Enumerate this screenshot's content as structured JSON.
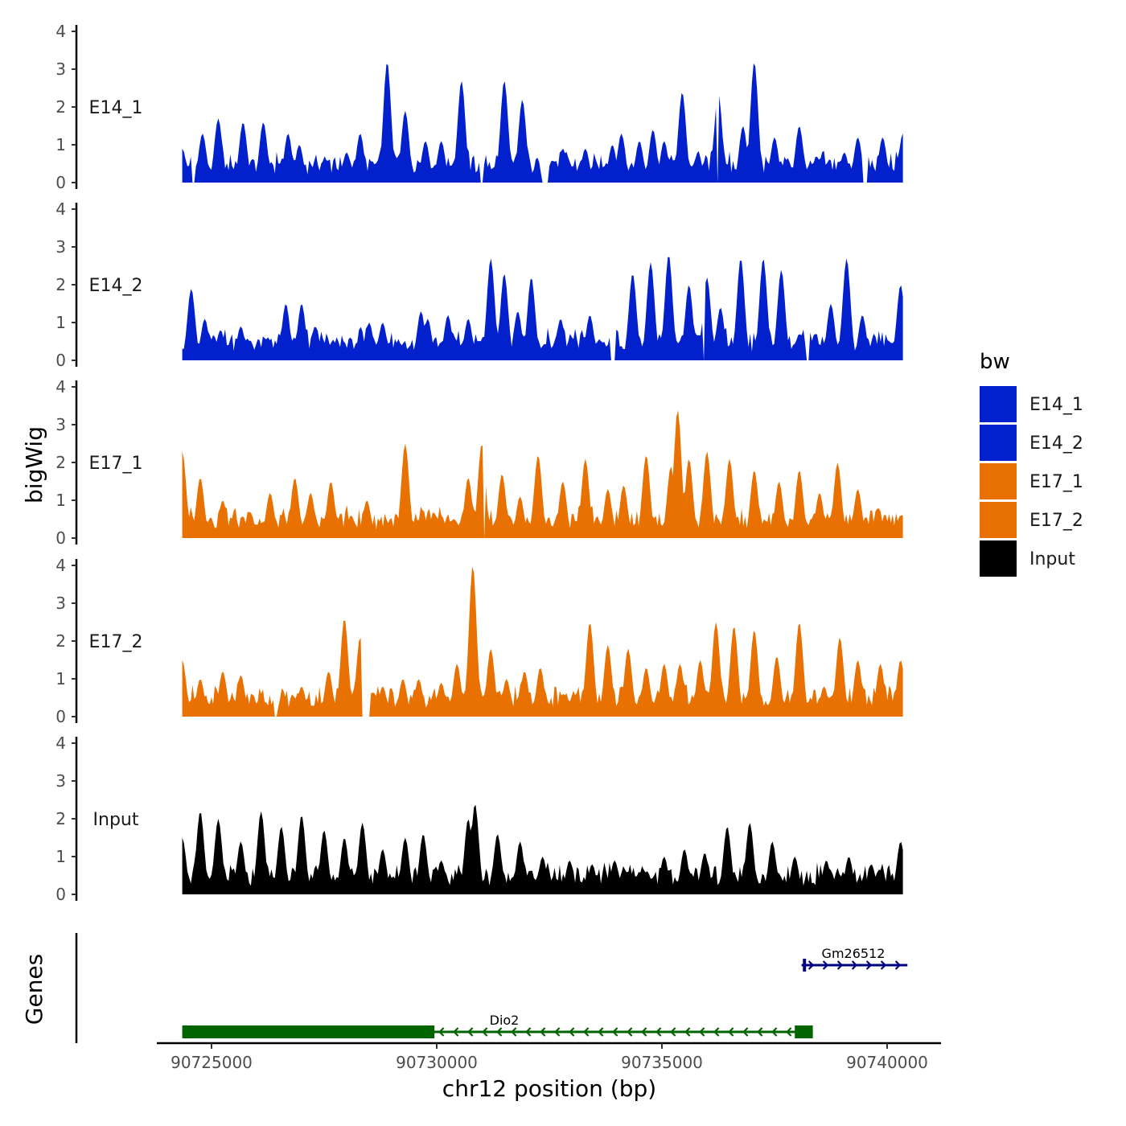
{
  "chart_data": {
    "type": "area",
    "title": "",
    "ylabel": "bigWig",
    "xlabel": "chr12 position (bp)",
    "xlim": [
      90723500,
      90740800
    ],
    "signal_x_range": [
      90724350,
      90740350
    ],
    "ylim": [
      0,
      4
    ],
    "yticks": [
      "0",
      "1",
      "2",
      "3",
      "4"
    ],
    "xticks": [
      {
        "value": 90725000,
        "label": "90725000"
      },
      {
        "value": 90730000,
        "label": "90730000"
      },
      {
        "value": 90735000,
        "label": "90735000"
      },
      {
        "value": 90740000,
        "label": "90740000"
      }
    ],
    "series": [
      {
        "name": "E14_1",
        "color": "#0220CC",
        "peaks": [
          [
            90724350,
            0.9
          ],
          [
            90724550,
            0
          ],
          [
            90724800,
            1.3
          ],
          [
            90725150,
            1.7
          ],
          [
            90725700,
            1.6
          ],
          [
            90726150,
            1.6
          ],
          [
            90726700,
            1.3
          ],
          [
            90726950,
            1.0
          ],
          [
            90727500,
            0.6
          ],
          [
            90728000,
            0.8
          ],
          [
            90728300,
            1.3
          ],
          [
            90728900,
            3.2
          ],
          [
            90729300,
            1.9
          ],
          [
            90729750,
            1.1
          ],
          [
            90730100,
            1.1
          ],
          [
            90730550,
            2.7
          ],
          [
            90731500,
            2.7
          ],
          [
            90731900,
            2.2
          ],
          [
            90732800,
            0.9
          ],
          [
            90733300,
            0.9
          ],
          [
            90733900,
            1.0
          ],
          [
            90734100,
            1.3
          ],
          [
            90734500,
            1.1
          ],
          [
            90734800,
            1.4
          ],
          [
            90735050,
            1.1
          ],
          [
            90735450,
            2.4
          ],
          [
            90735800,
            0.8
          ],
          [
            90736250,
            2.4
          ],
          [
            90736800,
            1.5
          ],
          [
            90737050,
            3.2
          ],
          [
            90737500,
            1.2
          ],
          [
            90738050,
            1.5
          ],
          [
            90738600,
            0.5
          ],
          [
            90739050,
            0.8
          ],
          [
            90739350,
            1.2
          ],
          [
            90739900,
            1.2
          ],
          [
            90740350,
            1.3
          ]
        ],
        "gaps": [
          [
            90724550,
            90724620
          ],
          [
            90730950,
            90731050
          ],
          [
            90732320,
            90732480
          ],
          [
            90736200,
            90736260
          ],
          [
            90739450,
            90739550
          ]
        ]
      },
      {
        "name": "E14_2",
        "color": "#0220CC",
        "peaks": [
          [
            90724350,
            0.3
          ],
          [
            90724550,
            1.9
          ],
          [
            90724850,
            1.1
          ],
          [
            90725200,
            0.8
          ],
          [
            90725650,
            0.9
          ],
          [
            90726250,
            0.6
          ],
          [
            90726650,
            1.5
          ],
          [
            90727000,
            1.5
          ],
          [
            90727300,
            0.9
          ],
          [
            90727450,
            0.6
          ],
          [
            90727800,
            0.4
          ],
          [
            90728500,
            1.0
          ],
          [
            90728800,
            1.0
          ],
          [
            90729650,
            1.3
          ],
          [
            90729800,
            1.1
          ],
          [
            90730250,
            1.2
          ],
          [
            90730700,
            1.1
          ],
          [
            90731200,
            2.7
          ],
          [
            90731500,
            2.3
          ],
          [
            90731800,
            1.3
          ],
          [
            90732100,
            2.2
          ],
          [
            90732750,
            1.1
          ],
          [
            90733400,
            1.2
          ],
          [
            90733950,
            0.9
          ],
          [
            90734350,
            2.3
          ],
          [
            90734750,
            2.6
          ],
          [
            90735150,
            2.8
          ],
          [
            90735600,
            2.0
          ],
          [
            90736000,
            2.2
          ],
          [
            90736300,
            1.4
          ],
          [
            90736750,
            2.7
          ],
          [
            90737250,
            2.7
          ],
          [
            90737650,
            2.4
          ],
          [
            90738050,
            0.7
          ],
          [
            90738400,
            0.7
          ],
          [
            90738750,
            1.5
          ],
          [
            90739100,
            2.7
          ],
          [
            90739450,
            1.2
          ],
          [
            90739900,
            0.4
          ],
          [
            90740300,
            2.0
          ]
        ],
        "gaps": [
          [
            90733850,
            90733950
          ],
          [
            90735900,
            90735960
          ],
          [
            90738180,
            90738280
          ]
        ]
      },
      {
        "name": "E17_1",
        "color": "#E87102",
        "peaks": [
          [
            90724350,
            2.3
          ],
          [
            90724750,
            1.6
          ],
          [
            90725250,
            1.0
          ],
          [
            90725850,
            0.7
          ],
          [
            90726300,
            1.2
          ],
          [
            90726850,
            1.6
          ],
          [
            90727200,
            1.2
          ],
          [
            90727650,
            1.5
          ],
          [
            90728100,
            0.6
          ],
          [
            90728450,
            1.0
          ],
          [
            90729300,
            2.5
          ],
          [
            90729700,
            0.6
          ],
          [
            90730100,
            0.6
          ],
          [
            90730700,
            1.6
          ],
          [
            90731000,
            2.5
          ],
          [
            90731450,
            1.7
          ],
          [
            90731850,
            1.1
          ],
          [
            90732250,
            2.2
          ],
          [
            90732800,
            1.5
          ],
          [
            90733300,
            2.1
          ],
          [
            90733800,
            1.3
          ],
          [
            90734150,
            1.4
          ],
          [
            90734650,
            2.2
          ],
          [
            90735200,
            1.9
          ],
          [
            90735350,
            3.4
          ],
          [
            90735600,
            2.1
          ],
          [
            90736000,
            2.3
          ],
          [
            90736500,
            2.1
          ],
          [
            90737050,
            1.8
          ],
          [
            90737600,
            1.5
          ],
          [
            90738050,
            1.8
          ],
          [
            90738500,
            1.2
          ],
          [
            90738900,
            2.0
          ],
          [
            90739350,
            1.3
          ],
          [
            90739800,
            0.8
          ],
          [
            90740300,
            0.6
          ]
        ],
        "gaps": [
          [
            90731050,
            90731080
          ]
        ]
      },
      {
        "name": "E17_2",
        "color": "#E87102",
        "peaks": [
          [
            90724350,
            1.5
          ],
          [
            90724750,
            1.0
          ],
          [
            90725250,
            1.2
          ],
          [
            90725650,
            1.1
          ],
          [
            90726100,
            0.5
          ],
          [
            90726600,
            0.3
          ],
          [
            90727000,
            0.8
          ],
          [
            90727600,
            1.2
          ],
          [
            90727950,
            2.6
          ],
          [
            90728300,
            2.1
          ],
          [
            90728800,
            0.8
          ],
          [
            90729250,
            1.0
          ],
          [
            90729600,
            1.0
          ],
          [
            90730100,
            0.9
          ],
          [
            90730450,
            1.4
          ],
          [
            90730800,
            4.0
          ],
          [
            90731200,
            1.8
          ],
          [
            90731550,
            1.0
          ],
          [
            90731950,
            1.2
          ],
          [
            90732300,
            1.3
          ],
          [
            90732800,
            0.6
          ],
          [
            90733400,
            2.5
          ],
          [
            90733800,
            1.9
          ],
          [
            90734250,
            1.8
          ],
          [
            90734650,
            1.3
          ],
          [
            90735050,
            1.4
          ],
          [
            90735400,
            1.4
          ],
          [
            90735850,
            1.5
          ],
          [
            90736200,
            2.5
          ],
          [
            90736600,
            2.4
          ],
          [
            90737050,
            2.3
          ],
          [
            90737550,
            1.6
          ],
          [
            90738050,
            2.5
          ],
          [
            90738600,
            0.8
          ],
          [
            90738950,
            2.1
          ],
          [
            90739350,
            1.5
          ],
          [
            90739850,
            1.4
          ],
          [
            90740300,
            1.5
          ]
        ],
        "gaps": [
          [
            90726400,
            90726450
          ],
          [
            90728340,
            90728540
          ]
        ]
      },
      {
        "name": "Input",
        "color": "#000000",
        "peaks": [
          [
            90724350,
            1.5
          ],
          [
            90724750,
            2.2
          ],
          [
            90725150,
            2.0
          ],
          [
            90725650,
            1.4
          ],
          [
            90726100,
            2.2
          ],
          [
            90726550,
            1.8
          ],
          [
            90727000,
            2.1
          ],
          [
            90727500,
            1.7
          ],
          [
            90727950,
            1.5
          ],
          [
            90728350,
            1.9
          ],
          [
            90728800,
            1.2
          ],
          [
            90729300,
            1.5
          ],
          [
            90729700,
            1.6
          ],
          [
            90730100,
            0.9
          ],
          [
            90730700,
            2.0
          ],
          [
            90730850,
            2.4
          ],
          [
            90731350,
            1.6
          ],
          [
            90731850,
            1.4
          ],
          [
            90732350,
            1.0
          ],
          [
            90732950,
            0.9
          ],
          [
            90733450,
            0.8
          ],
          [
            90733950,
            0.9
          ],
          [
            90734500,
            0.6
          ],
          [
            90735050,
            1.0
          ],
          [
            90735500,
            1.2
          ],
          [
            90735950,
            1.1
          ],
          [
            90736450,
            1.8
          ],
          [
            90736950,
            1.9
          ],
          [
            90737450,
            1.4
          ],
          [
            90737950,
            1.0
          ],
          [
            90738650,
            0.9
          ],
          [
            90739150,
            1.0
          ],
          [
            90739650,
            0.8
          ],
          [
            90740300,
            1.4
          ]
        ],
        "gaps": []
      }
    ],
    "legend": {
      "title": "bw",
      "placement": "right",
      "entries": [
        {
          "label": "E14_1",
          "color": "#0220CC"
        },
        {
          "label": "E14_2",
          "color": "#0220CC"
        },
        {
          "label": "E17_1",
          "color": "#E87102"
        },
        {
          "label": "E17_2",
          "color": "#E87102"
        },
        {
          "label": "Input",
          "color": "#000000"
        }
      ]
    },
    "genes_track": {
      "label": "Genes",
      "genes": [
        {
          "name": "Dio2",
          "start": 90724350,
          "end": 90738350,
          "strand": "-",
          "color": "#006400",
          "thick_ranges": [
            [
              90724350,
              90729950
            ],
            [
              90737950,
              90738350
            ]
          ]
        },
        {
          "name": "Gm26512",
          "start": 90738100,
          "end": 90740450,
          "strand": "+",
          "color": "#000080",
          "thick_ranges": [
            [
              90738130,
              90738200
            ]
          ]
        }
      ]
    }
  }
}
